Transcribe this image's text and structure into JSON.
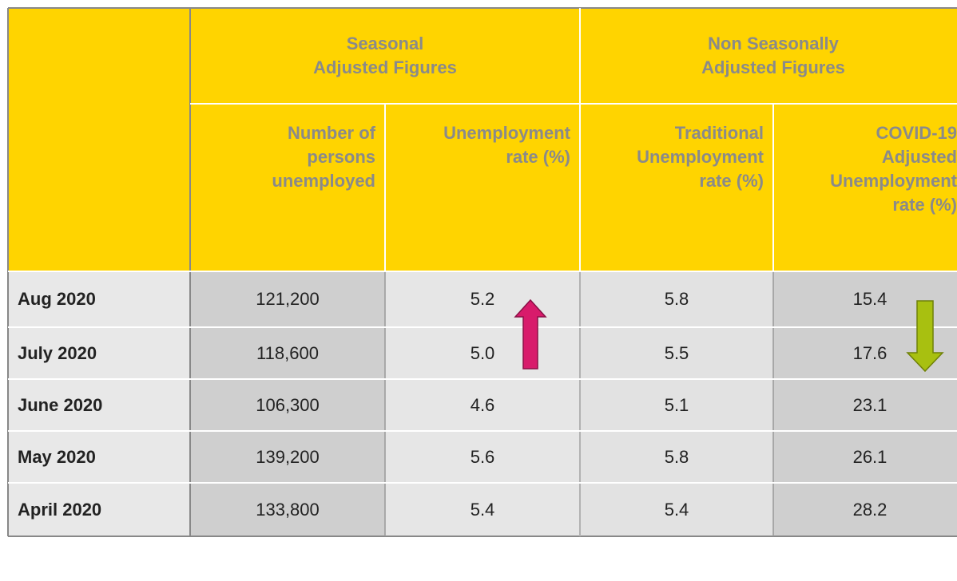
{
  "header": {
    "groups": [
      "Seasonal\nAdjusted Figures",
      "Non Seasonally\nAdjusted Figures"
    ]
  },
  "table": {
    "columns": [
      "Number of\npersons\nunemployed",
      "Unemployment\nrate (%)",
      "Traditional\nUnemployment\nrate (%)",
      "COVID-19\nAdjusted\nUnemployment\nrate (%)"
    ],
    "rows": [
      [
        "Aug 2020",
        "121,200",
        "5.2",
        "5.8",
        "15.4"
      ],
      [
        "July 2020",
        "118,600",
        "5.0",
        "5.5",
        "17.6"
      ],
      [
        "June 2020",
        "106,300",
        "4.6",
        "5.1",
        "23.1"
      ],
      [
        "May 2020",
        "139,200",
        "5.6",
        "5.8",
        "26.1"
      ],
      [
        "April 2020",
        "133,800",
        "5.4",
        "5.4",
        "28.2"
      ]
    ]
  }
}
